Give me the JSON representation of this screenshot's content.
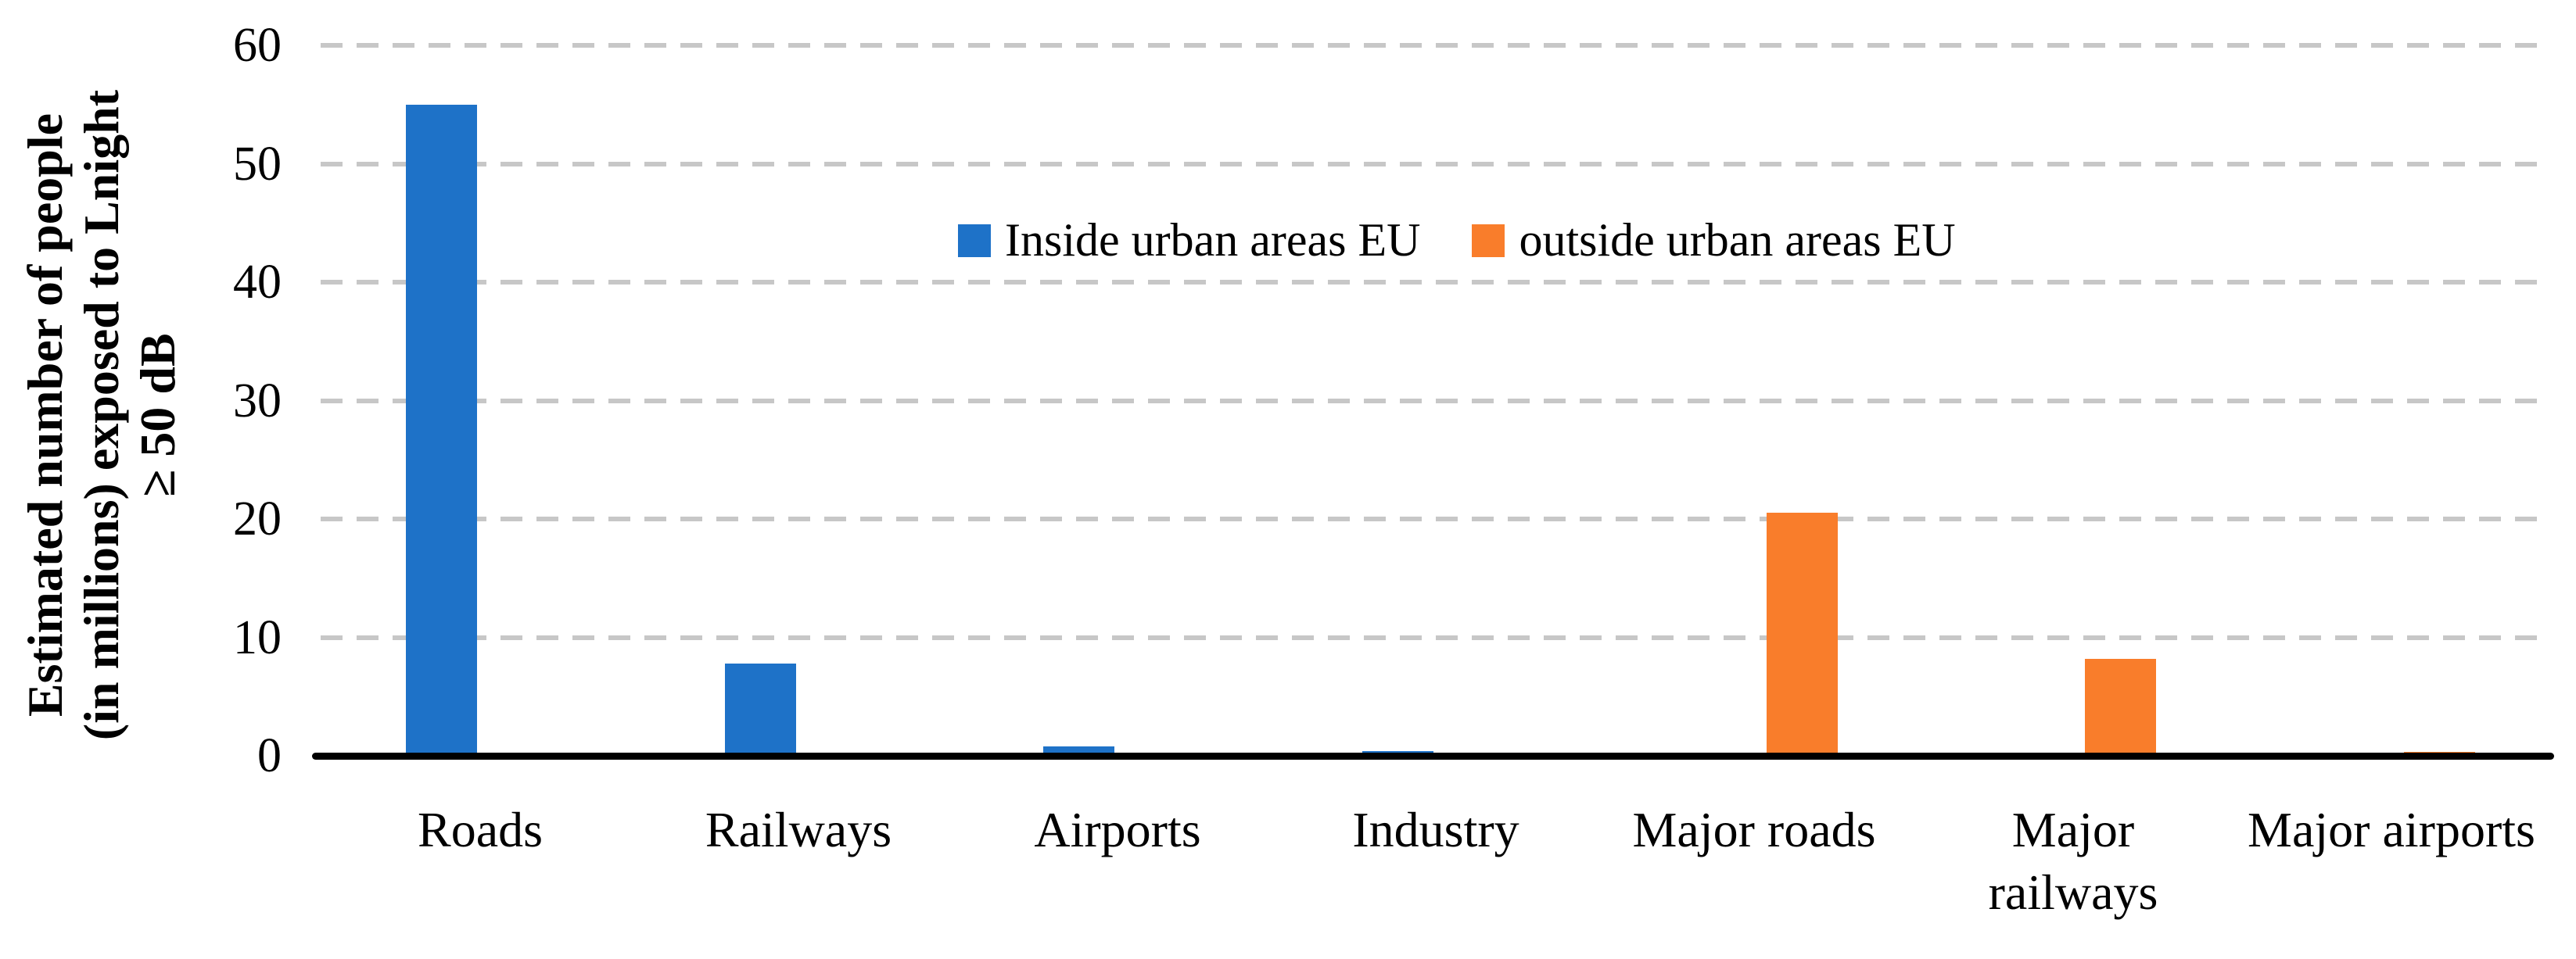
{
  "chart_data": {
    "type": "bar",
    "title": "",
    "ylabel_lines": [
      "Estimated number of people",
      "(in millions) exposed to Lnight",
      "≥ 50 dB"
    ],
    "ylabel_full": "Estimated number of people (in millions) exposed to Lnight ≥ 50 dB",
    "xlabel": "",
    "categories": [
      "Roads",
      "Railways",
      "Airports",
      "Industry",
      "Major roads",
      "Major railways",
      "Major airports"
    ],
    "series": [
      {
        "name": "Inside urban areas EU",
        "color": "#1E72C8",
        "values": [
          55,
          7.8,
          0.8,
          0.4,
          0,
          0,
          0
        ]
      },
      {
        "name": "outside urban areas EU",
        "color": "#F97D2B",
        "values": [
          0,
          0,
          0,
          0,
          20.5,
          8.2,
          0.3
        ]
      }
    ],
    "ylim": [
      0,
      60
    ],
    "yticks": [
      0,
      10,
      20,
      30,
      40,
      50,
      60
    ],
    "grid": "horizontal-dashed",
    "legend_position": "inside-top-center"
  },
  "colors": {
    "series_blue": "#1E72C8",
    "series_orange": "#F97D2B",
    "gridline": "#c7c7c7",
    "axis": "#000000",
    "text": "#000000",
    "background": "#ffffff"
  }
}
